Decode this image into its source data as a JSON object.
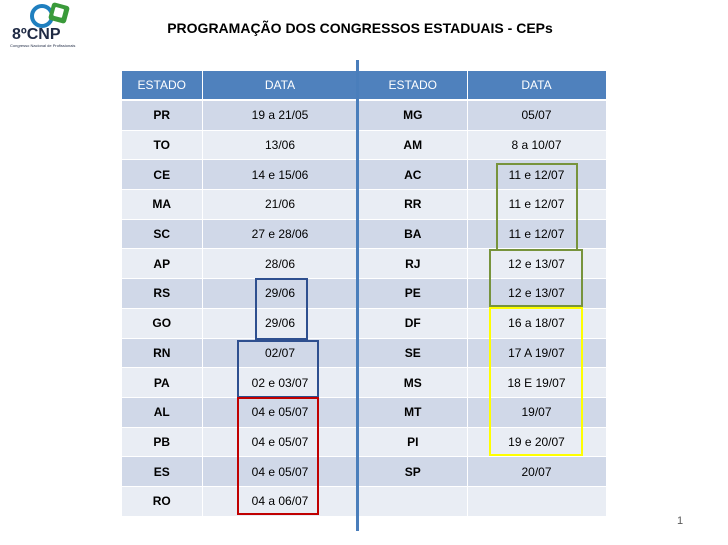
{
  "logo": {
    "text": "8ºCNP",
    "subtitle": "Congresso Nacional de Profissionais",
    "colors": {
      "blue": "#1f7fbf",
      "green": "#3a9a3a",
      "dark": "#1f2a44"
    }
  },
  "title": "PROGRAMAÇÃO DOS CONGRESSOS ESTADUAIS - CEPs",
  "left_table": {
    "headers": [
      "ESTADO",
      "DATA"
    ],
    "rows": [
      [
        "PR",
        "19 a 21/05"
      ],
      [
        "TO",
        "13/06"
      ],
      [
        "CE",
        "14 e 15/06"
      ],
      [
        "MA",
        "21/06"
      ],
      [
        "SC",
        "27 e 28/06"
      ],
      [
        "AP",
        "28/06"
      ],
      [
        "RS",
        "29/06"
      ],
      [
        "GO",
        "29/06"
      ],
      [
        "RN",
        "02/07"
      ],
      [
        "PA",
        "02 e 03/07"
      ],
      [
        "AL",
        "04 e 05/07"
      ],
      [
        "PB",
        "04 e 05/07"
      ],
      [
        "ES",
        "04 e 05/07"
      ],
      [
        "RO",
        "04 a 06/07"
      ]
    ]
  },
  "right_table": {
    "headers": [
      "ESTADO",
      "DATA"
    ],
    "rows": [
      [
        "MG",
        "05/07"
      ],
      [
        "AM",
        "8 a 10/07"
      ],
      [
        "AC",
        "11 e 12/07"
      ],
      [
        "RR",
        "11 e 12/07"
      ],
      [
        "BA",
        "11 e 12/07"
      ],
      [
        "RJ",
        "12 e 13/07"
      ],
      [
        "PE",
        "12 e 13/07"
      ],
      [
        "DF",
        "16 a 18/07"
      ],
      [
        "SE",
        "17 A 19/07"
      ],
      [
        "MS",
        "18 E 19/07"
      ],
      [
        "MT",
        "19/07"
      ],
      [
        "PI",
        "19 e 20/07"
      ],
      [
        "SP",
        "20/07"
      ],
      [
        "",
        ""
      ]
    ]
  },
  "colors": {
    "header_bg": "#4f81bd",
    "row_dark": "#d0d8e8",
    "row_light": "#e9edf4",
    "divider": "#4a7ebb",
    "box_blue": "#2e4f8f",
    "box_red": "#c00000",
    "box_olive": "#77933c",
    "box_yellow": "#ffff00"
  },
  "page_number": "1"
}
